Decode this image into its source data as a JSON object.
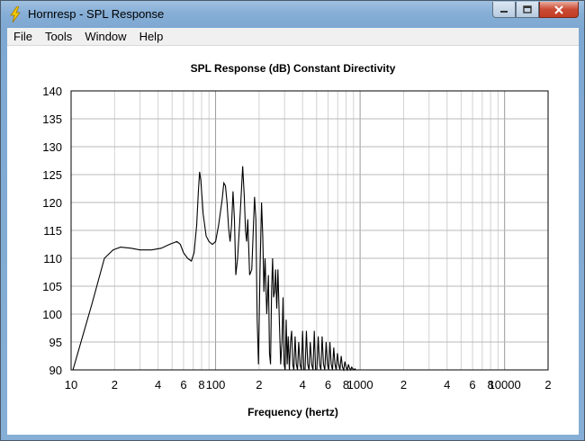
{
  "window": {
    "title": "Hornresp - SPL Response"
  },
  "menu": [
    "File",
    "Tools",
    "Window",
    "Help"
  ],
  "chart_data": {
    "type": "line",
    "title": "SPL Response (dB)   Constant Directivity",
    "xlabel": "Frequency (hertz)",
    "ylabel": "",
    "xscale": "log",
    "xlim": [
      10,
      20000
    ],
    "ylim": [
      90,
      140
    ],
    "grid": true,
    "y_ticks": [
      "90",
      "95",
      "100",
      "105",
      "110",
      "115",
      "120",
      "125",
      "130",
      "135",
      "140"
    ],
    "x_ticks": [
      {
        "value": 10,
        "label": "10"
      },
      {
        "value": 20,
        "label": "2"
      },
      {
        "value": 40,
        "label": "4"
      },
      {
        "value": 60,
        "label": "6"
      },
      {
        "value": 80,
        "label": "8"
      },
      {
        "value": 100,
        "label": "100"
      },
      {
        "value": 200,
        "label": "2"
      },
      {
        "value": 400,
        "label": "4"
      },
      {
        "value": 600,
        "label": "6"
      },
      {
        "value": 800,
        "label": "8"
      },
      {
        "value": 1000,
        "label": "1000"
      },
      {
        "value": 2000,
        "label": "2"
      },
      {
        "value": 4000,
        "label": "4"
      },
      {
        "value": 6000,
        "label": "6"
      },
      {
        "value": 8000,
        "label": "8"
      },
      {
        "value": 10000,
        "label": "10000"
      },
      {
        "value": 20000,
        "label": "2"
      }
    ],
    "series": [
      {
        "x": [
          10.3,
          14,
          17,
          19.5,
          22,
          26,
          30,
          36,
          42,
          48,
          54,
          57,
          60,
          64,
          68,
          71,
          74,
          76,
          77.5,
          79,
          82,
          86,
          90,
          95,
          100,
          105,
          111,
          114,
          117,
          120,
          123,
          126,
          129,
          132,
          135,
          138,
          142,
          148,
          154,
          158,
          161,
          164,
          167,
          172,
          178,
          186,
          190,
          194,
          198,
          203,
          208,
          212,
          216,
          220,
          226,
          232,
          236,
          240,
          244,
          248,
          252,
          256,
          260,
          265,
          270,
          276,
          282,
          288,
          293,
          298,
          303,
          308,
          313,
          318,
          324,
          330,
          336,
          342,
          348,
          355,
          362,
          369,
          376,
          384,
          392,
          400,
          408,
          416,
          425,
          434,
          443,
          452,
          462,
          472,
          482,
          492,
          502,
          513,
          524,
          535,
          546,
          558,
          570,
          582,
          594,
          606,
          618,
          631,
          644,
          657,
          670,
          683,
          697,
          711,
          725,
          740,
          755,
          770,
          785,
          800,
          815,
          830,
          845,
          860,
          875,
          890,
          905,
          920,
          935,
          950
        ],
        "y": [
          90,
          102,
          110,
          111.5,
          112,
          111.8,
          111.5,
          111.5,
          111.8,
          112.5,
          113,
          112.5,
          111,
          110,
          109.5,
          111,
          116,
          122,
          125.5,
          124,
          118,
          114,
          113,
          112.5,
          113,
          116,
          120.5,
          123.5,
          123,
          120,
          115.5,
          113,
          116,
          122,
          117,
          107,
          110,
          118,
          126.5,
          121,
          115,
          113,
          117,
          107,
          108,
          121,
          117,
          99,
          91,
          108,
          120,
          114,
          104,
          110,
          100,
          107,
          93,
          91,
          104,
          110,
          103,
          104,
          108,
          101,
          108,
          99,
          91,
          95,
          103,
          91,
          90,
          99,
          91,
          96,
          90,
          95,
          97,
          91,
          90,
          96,
          91,
          90,
          95,
          91,
          90,
          97,
          90,
          90,
          97,
          91,
          90,
          95,
          91,
          90,
          97,
          90,
          90,
          96,
          91,
          90,
          96,
          91,
          90,
          95,
          91,
          90,
          95,
          91,
          90,
          94,
          91,
          90,
          93,
          91,
          90,
          92.5,
          90.5,
          90,
          91.5,
          90.5,
          90,
          91,
          90.3,
          90,
          90.5,
          90.2,
          90,
          90.2,
          90,
          90
        ]
      }
    ]
  }
}
